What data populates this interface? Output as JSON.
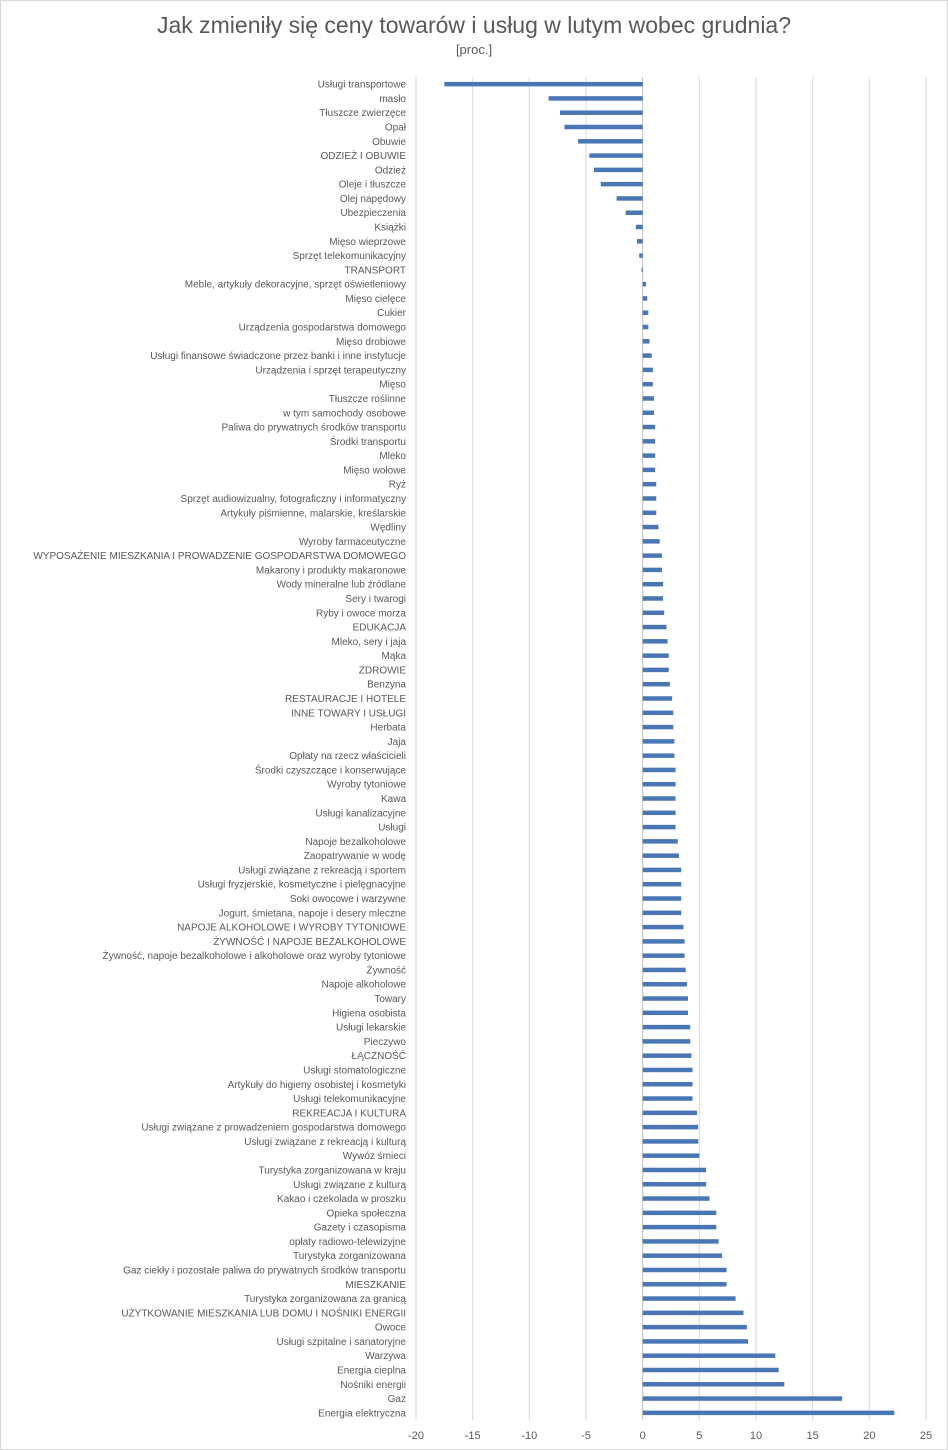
{
  "chart_data": {
    "type": "bar",
    "orientation": "horizontal",
    "title": "Jak zmieniły się ceny towarów i usług w lutym wobec grudnia?",
    "subtitle": "[proc.]",
    "xlim": [
      -20,
      25
    ],
    "xticks": [
      "-20",
      "-15",
      "-10",
      "-5",
      "0",
      "5",
      "10",
      "15",
      "20",
      "25"
    ],
    "xtick_values": [
      -20,
      -15,
      -10,
      -5,
      0,
      5,
      10,
      15,
      20,
      25
    ],
    "grid": true,
    "bar_color": "#4a77b4",
    "categories": [
      "Usługi transportowe",
      "masło",
      "Tłuszcze zwierzęce",
      "Opał",
      "Obuwie",
      "ODZIEŻ I OBUWIE",
      "Odzież",
      "Oleje i tłuszcze",
      "Olej napędowy",
      "Ubezpieczenia",
      "Książki",
      "Mięso wieprzowe",
      "Sprzęt telekomunikacyjny",
      "TRANSPORT",
      "Meble, artykuły dekoracyjne, sprzęt oświetleniowy",
      "Mięso cielęce",
      "Cukier",
      "Urządzenia gospodarstwa domowego",
      "Mięso drobiowe",
      "Usługi finansowe świadczone przez banki i inne instytucje",
      "Urządzenia i sprzęt terapeutyczny",
      "Mięso",
      "Tłuszcze roślinne",
      "w tym samochody osobowe",
      "Paliwa do prywatnych środków transportu",
      "Środki transportu",
      "Mleko",
      "Mięso wołowe",
      "Ryż",
      "Sprzęt audiowizualny, fotograficzny i informatyczny",
      "Artykuły piśmienne, malarskie, kreślarskie",
      "Wędliny",
      "Wyroby farmaceutyczne",
      "WYPOSAŻENIE MIESZKANIA I PROWADZENIE GOSPODARSTWA DOMOWEGO",
      "Makarony i produkty makaronowe",
      "Wody mineralne lub źródlane",
      "Sery i twarogi",
      "Ryby i owoce morza",
      "EDUKACJA",
      "Mleko, sery i jaja",
      "Mąka",
      "ZDROWIE",
      "Benzyna",
      "RESTAURACJE I HOTELE",
      "INNE TOWARY I USŁUGI",
      "Herbata",
      "Jaja",
      "Opłaty na rzecz właścicieli",
      "Środki czyszczące i konserwujące",
      "Wyroby tytoniowe",
      "Kawa",
      "Usługi kanalizacyjne",
      "Usługi",
      "Napoje bezalkoholowe",
      "Zaopatrywanie w wodę",
      "Usługi związane z rekreacją i sportem",
      "Usługi fryzjerskie, kosmetyczne i pielęgnacyjne",
      "Soki owocowe i warzywne",
      "Jogurt, śmietana, napoje i desery mleczne",
      "NAPOJE ALKOHOLOWE I WYROBY TYTONIOWE",
      "ŻYWNOŚĆ I NAPOJE BEZALKOHOLOWE",
      "Żywność, napoje bezalkoholowe i alkoholowe oraz wyroby tytoniowe",
      "Żywność",
      "Napoje alkoholowe",
      "Towary",
      "Higiena osobista",
      "Usługi lekarskie",
      "Pieczywo",
      "ŁĄCZNOŚĆ",
      "Usługi stomatologiczne",
      "Artykuły do higieny osobistej i kosmetyki",
      "Usługi telekomunikacyjne",
      "REKREACJA I KULTURA",
      "Usługi związane z prowadzeniem gospodarstwa domowego",
      "Usługi związane z rekreacją i kulturą",
      "Wywóz śmieci",
      "Turystyka zorganizowana w kraju",
      "Usługi związane z kulturą",
      "Kakao i czekolada w proszku",
      "Opieka społeczna",
      "Gazety i czasopisma",
      "opłaty radiowo-telewizyjne",
      "Turystyka zorganizowana",
      "Gaz ciekły i pozostałe paliwa do prywatnych środków transportu",
      "MIESZKANIE",
      "Turystyka zorganizowana za granicą",
      "UŻYTKOWANIE MIESZKANIA LUB DOMU I NOŚNIKI ENERGII",
      "Owoce",
      "Usługi szpitalne i sanatoryjne",
      "Warzywa",
      "Energia cieplna",
      "Nośniki energii",
      "Gaz",
      "Energia elektryczna"
    ],
    "values": [
      -17.5,
      -8.3,
      -7.3,
      -6.9,
      -5.7,
      -4.7,
      -4.3,
      -3.7,
      -2.3,
      -1.5,
      -0.6,
      -0.5,
      -0.3,
      -0.1,
      0.3,
      0.4,
      0.5,
      0.5,
      0.6,
      0.8,
      0.9,
      0.9,
      1.0,
      1.0,
      1.1,
      1.1,
      1.1,
      1.1,
      1.2,
      1.2,
      1.2,
      1.4,
      1.5,
      1.7,
      1.7,
      1.8,
      1.8,
      1.9,
      2.1,
      2.2,
      2.3,
      2.3,
      2.4,
      2.6,
      2.7,
      2.7,
      2.8,
      2.8,
      2.9,
      2.9,
      2.9,
      2.9,
      2.9,
      3.1,
      3.2,
      3.4,
      3.4,
      3.4,
      3.4,
      3.6,
      3.7,
      3.7,
      3.8,
      3.9,
      4.0,
      4.0,
      4.2,
      4.2,
      4.3,
      4.4,
      4.4,
      4.4,
      4.8,
      4.9,
      4.9,
      5.0,
      5.6,
      5.6,
      5.9,
      6.5,
      6.5,
      6.7,
      7.0,
      7.4,
      7.4,
      8.2,
      8.9,
      9.2,
      9.3,
      11.7,
      12.0,
      12.5,
      17.6,
      22.2
    ]
  }
}
